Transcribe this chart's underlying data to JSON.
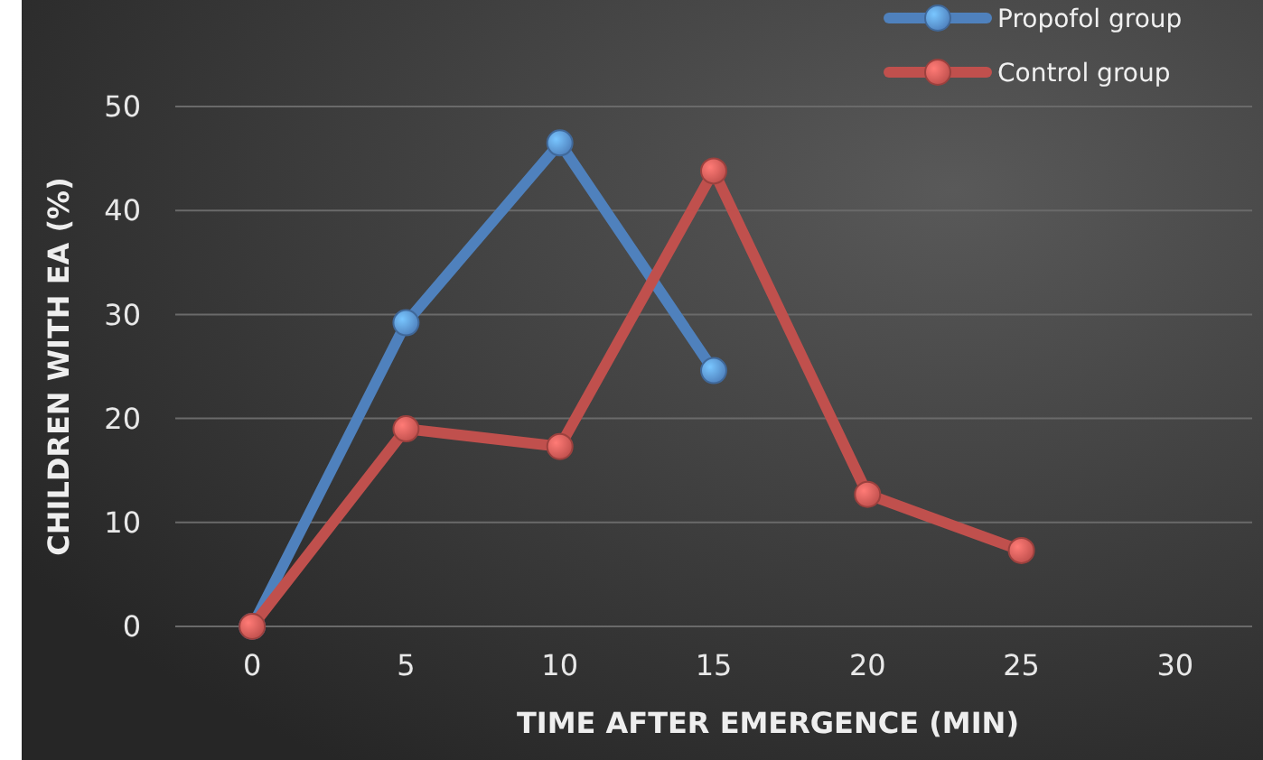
{
  "chart_data": {
    "type": "line",
    "xlabel": "TIME AFTER EMERGENCE (MIN)",
    "ylabel": "CHILDREN WITH EA (%)",
    "xlim": [
      -2.5,
      32.5
    ],
    "xticks": [
      0,
      5,
      10,
      15,
      20,
      25,
      30
    ],
    "ylim": [
      0,
      50
    ],
    "yticks": [
      0,
      10,
      20,
      30,
      40,
      50
    ],
    "grid": "y",
    "legend": "top right",
    "marker": "circle",
    "line_style": "solid",
    "series": [
      {
        "name": "Propofol group",
        "color": "#4f81bd",
        "x": [
          0,
          5,
          10,
          15
        ],
        "values": [
          0,
          29.2,
          46.5,
          24.6
        ]
      },
      {
        "name": "Control group",
        "color": "#c0504d",
        "x": [
          0,
          5,
          10,
          15,
          20,
          25
        ],
        "values": [
          0,
          19,
          17.3,
          43.8,
          12.7,
          7.3
        ]
      }
    ]
  }
}
